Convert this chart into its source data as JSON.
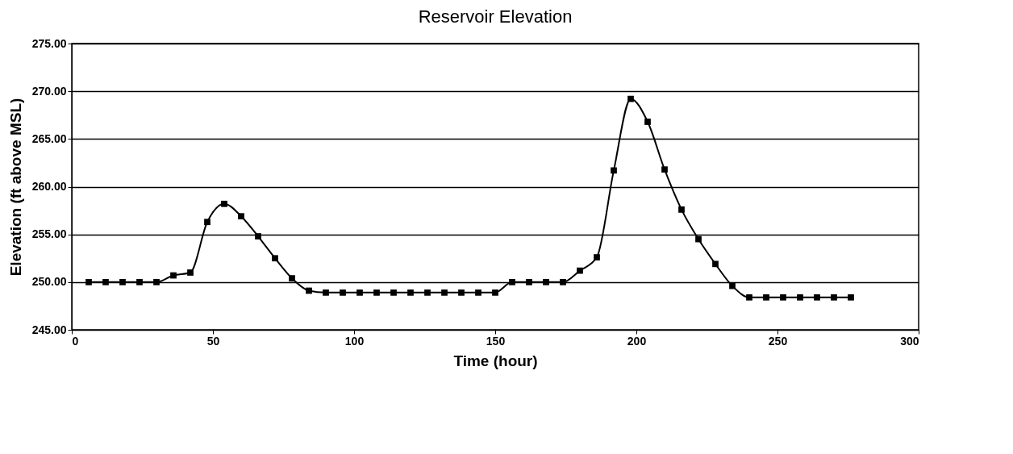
{
  "chart_data": {
    "type": "line",
    "title": "Reservoir Elevation",
    "xlabel": "Time (hour)",
    "ylabel": "Elevation (ft above MSL)",
    "x": [
      6,
      12,
      18,
      24,
      30,
      36,
      42,
      48,
      54,
      60,
      66,
      72,
      78,
      84,
      90,
      96,
      102,
      108,
      114,
      120,
      126,
      132,
      138,
      144,
      150,
      156,
      162,
      168,
      174,
      180,
      186,
      192,
      198,
      204,
      210,
      216,
      222,
      228,
      234,
      240,
      246,
      252,
      258,
      264,
      270,
      276
    ],
    "series": [
      {
        "color": "#000000",
        "values": [
          250.0,
          250.0,
          250.0,
          250.0,
          250.0,
          250.7,
          251.0,
          256.3,
          258.2,
          256.9,
          254.8,
          252.5,
          250.4,
          249.1,
          248.9,
          248.9,
          248.9,
          248.9,
          248.9,
          248.9,
          248.9,
          248.9,
          248.9,
          248.9,
          248.9,
          250.0,
          250.0,
          250.0,
          250.0,
          251.2,
          252.6,
          261.7,
          269.2,
          266.8,
          261.8,
          257.6,
          254.5,
          251.9,
          249.6,
          248.4,
          248.4,
          248.4,
          248.4,
          248.4,
          248.4,
          248.4
        ]
      }
    ],
    "xlim": [
      0,
      300
    ],
    "xticks": [
      0,
      50,
      100,
      150,
      200,
      250,
      300
    ],
    "ylim": [
      245,
      275
    ],
    "yticks": [
      {
        "value": 245,
        "label": "245.00"
      },
      {
        "value": 250,
        "label": "250.00"
      },
      {
        "value": 255,
        "label": "255.00"
      },
      {
        "value": 260,
        "label": "260.00"
      },
      {
        "value": 265,
        "label": "265.00"
      },
      {
        "value": 270,
        "label": "270.00"
      },
      {
        "value": 275,
        "label": "275.00"
      }
    ],
    "grid": "y",
    "marker": "square",
    "line_style": "solid"
  }
}
